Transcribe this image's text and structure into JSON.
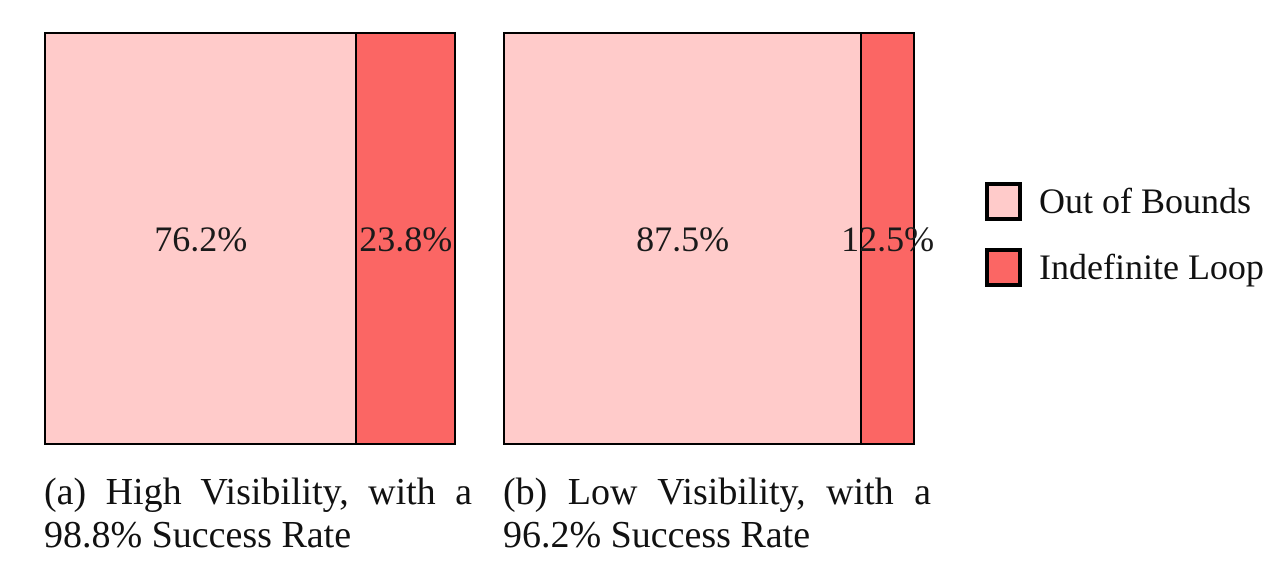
{
  "figure": {
    "colors": {
      "out_of_bounds": "#FFCBCA",
      "indefinite_loop": "#FB6664",
      "border": "#000000",
      "text": "#161616",
      "background": "#FFFFFF"
    },
    "charts": [
      {
        "panel": "a",
        "caption_line1": "(a) High Visibility, with a",
        "caption_line2": "98.8% Success Rate",
        "success_rate": "98.8%",
        "segments": [
          {
            "name": "Out of Bounds",
            "label": "76.2%"
          },
          {
            "name": "Indefinite Loop",
            "label": "23.8%"
          }
        ]
      },
      {
        "panel": "b",
        "caption_line1": "(b) Low Visibility, with a",
        "caption_line2": "96.2% Success Rate",
        "success_rate": "96.2%",
        "segments": [
          {
            "name": "Out of Bounds",
            "label": "87.5%"
          },
          {
            "name": "Indefinite Loop",
            "label": "12.5%"
          }
        ]
      }
    ],
    "legend": {
      "items": [
        {
          "label": "Out of Bounds",
          "color": "#FFCBCA"
        },
        {
          "label": "Indefinite Loop",
          "color": "#FB6664"
        }
      ]
    }
  },
  "chart_data": [
    {
      "type": "bar",
      "subtype": "stacked-100-percent-mosaic",
      "title": "(a) High Visibility, with a 98.8% Success Rate",
      "categories": [
        "High Visibility"
      ],
      "series": [
        {
          "name": "Out of Bounds",
          "values": [
            76.2
          ]
        },
        {
          "name": "Indefinite Loop",
          "values": [
            23.8
          ]
        }
      ],
      "unit": "%",
      "success_rate": 98.8,
      "data_labels": [
        "76.2%",
        "23.8%"
      ],
      "legend_position": "right",
      "grid": false
    },
    {
      "type": "bar",
      "subtype": "stacked-100-percent-mosaic",
      "title": "(b) Low Visibility, with a 96.2% Success Rate",
      "categories": [
        "Low Visibility"
      ],
      "series": [
        {
          "name": "Out of Bounds",
          "values": [
            87.5
          ]
        },
        {
          "name": "Indefinite Loop",
          "values": [
            12.5
          ]
        }
      ],
      "unit": "%",
      "success_rate": 96.2,
      "data_labels": [
        "87.5%",
        "12.5%"
      ],
      "legend_position": "right",
      "grid": false
    }
  ]
}
